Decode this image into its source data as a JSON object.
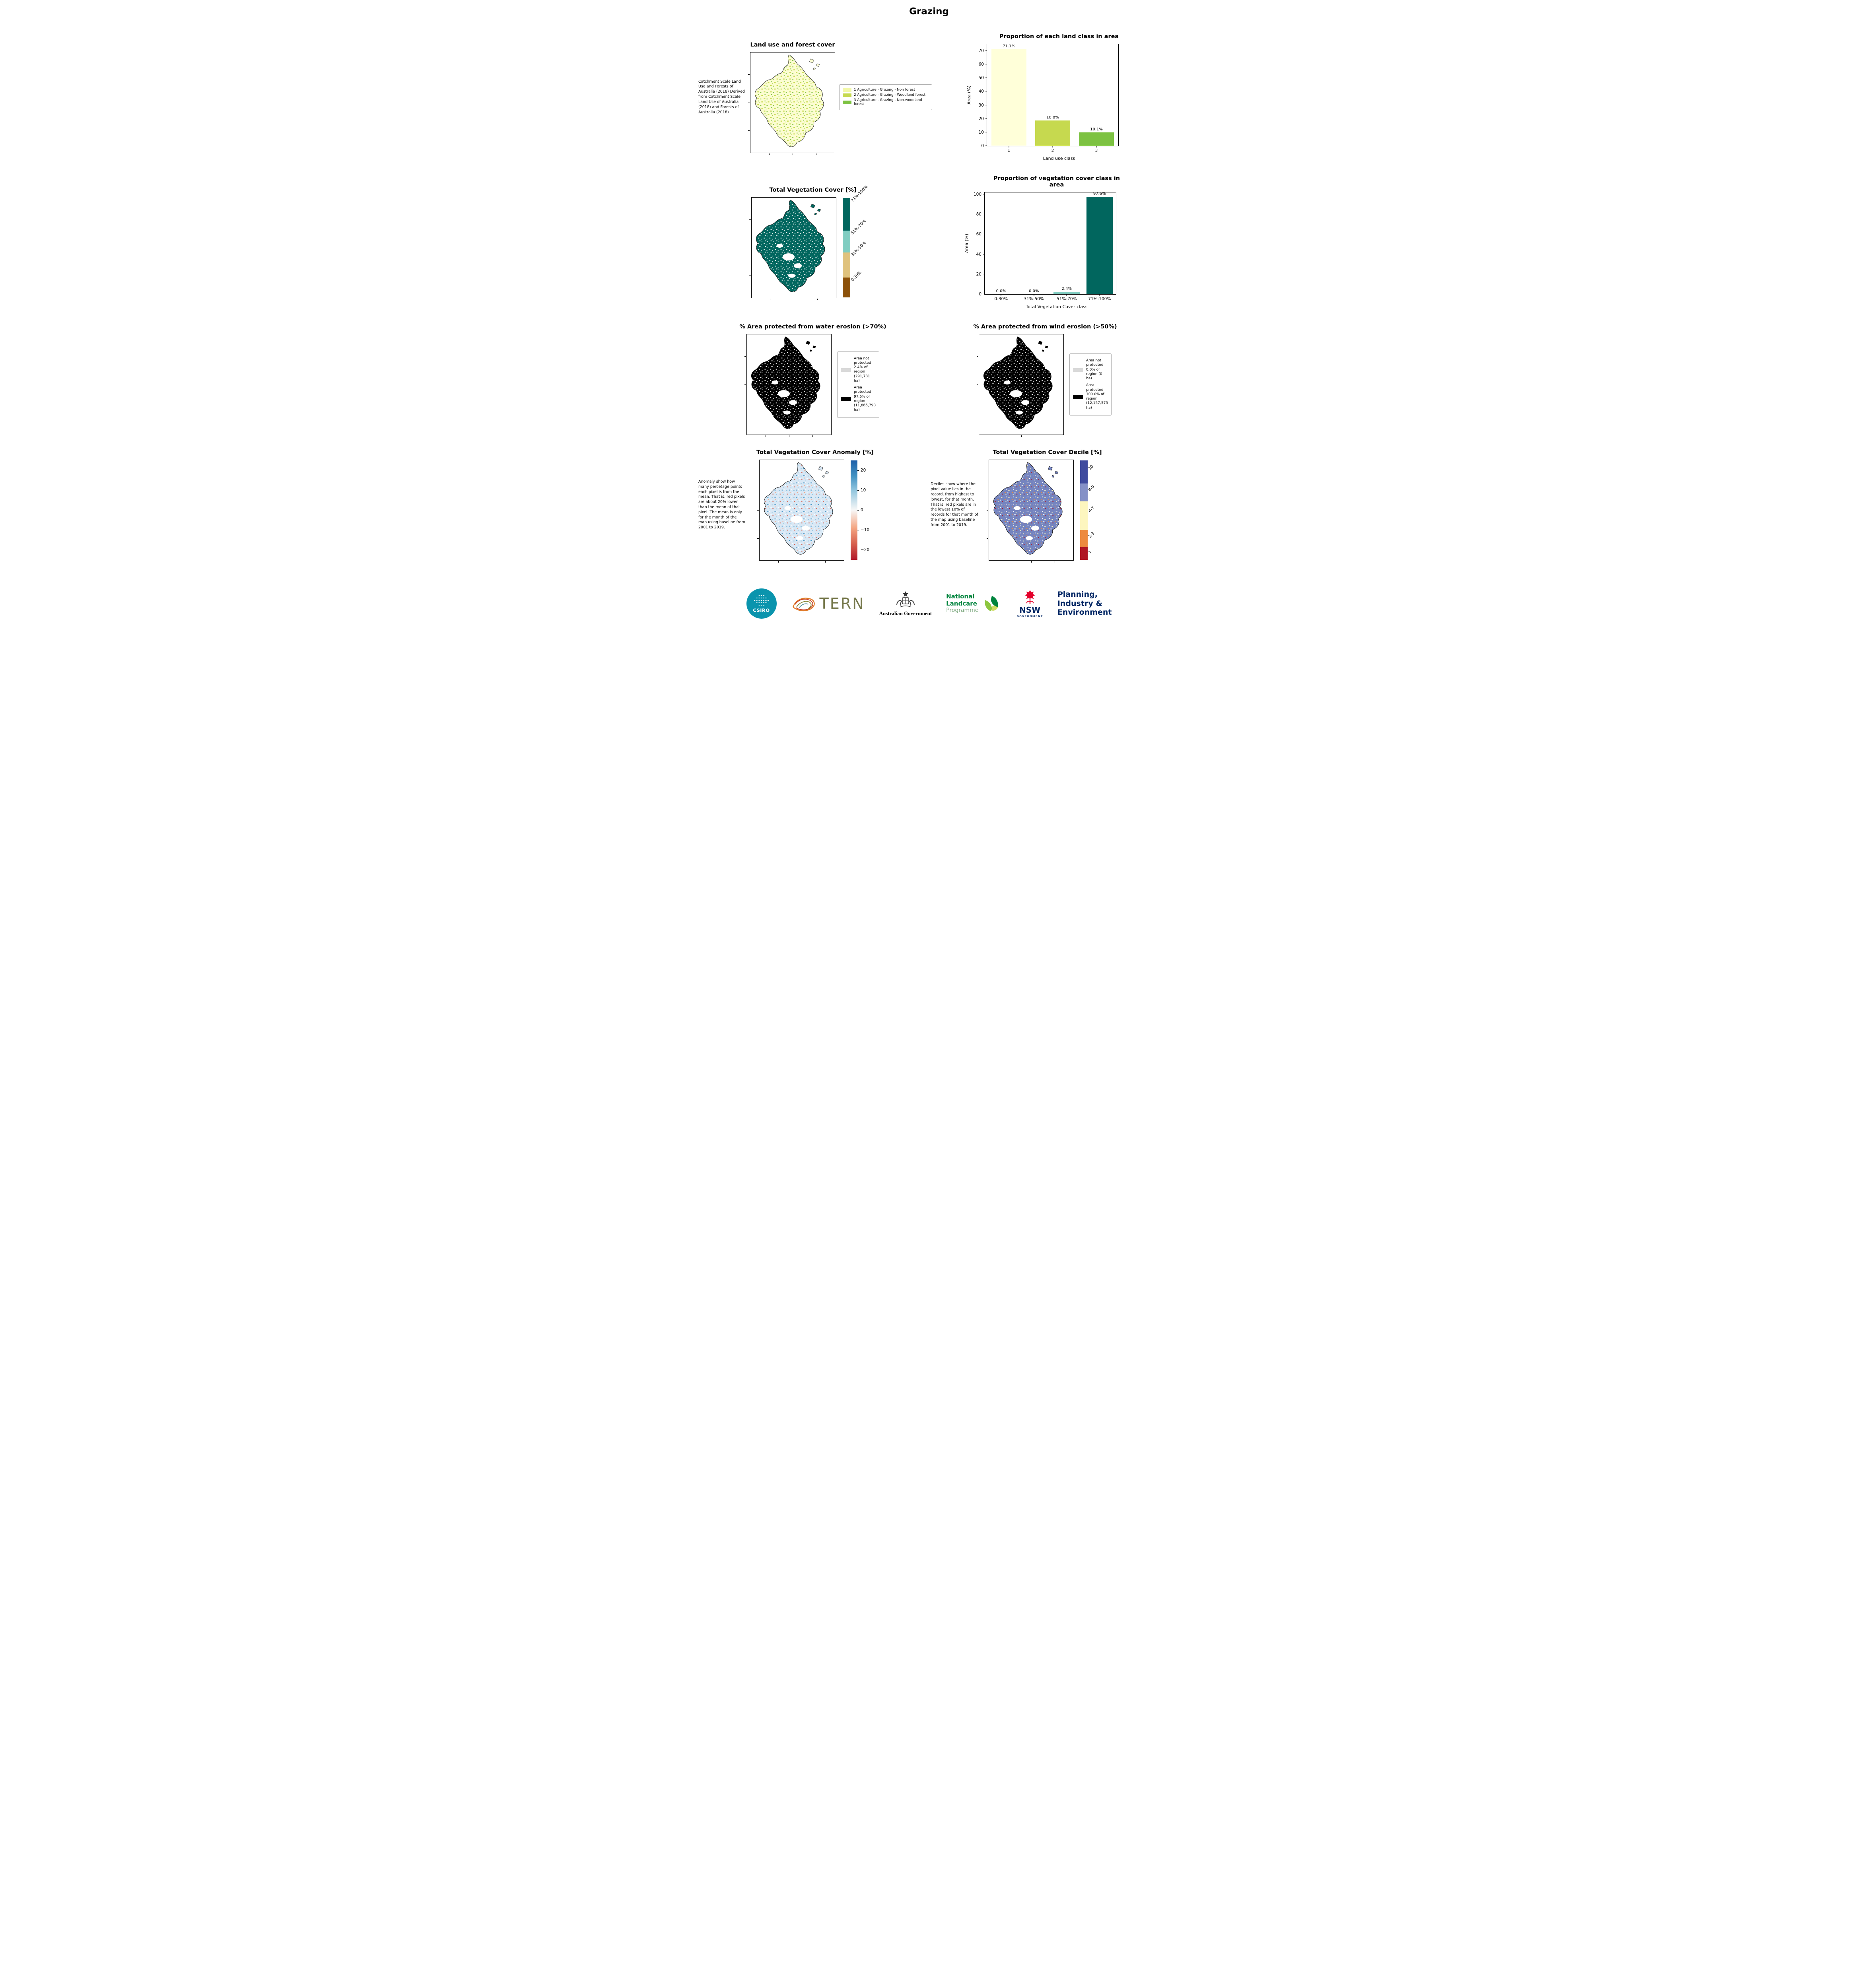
{
  "page_title": "Grazing",
  "panels": {
    "land_use": {
      "title": "Land use and forest cover",
      "side_text": "Catchment Scale Land Use and Forests of Australia (2018) Derived from Catchment Scale Land Use of Australia (2018) and Forests of Australia (2018)",
      "legend": [
        {
          "label": "1 Agriculture - Grazing - Non forest",
          "color": "#f2f8a9"
        },
        {
          "label": "2 Agriculture - Grazing - Woodland forest",
          "color": "#c6d94f"
        },
        {
          "label": "3 Agriculture - Grazing - Non-woodland forest",
          "color": "#7dc242"
        }
      ]
    },
    "veg_cover": {
      "title": "Total Vegetation Cover [%]",
      "colorbar": [
        {
          "label": "71%-100%",
          "color": "#01665e"
        },
        {
          "label": "51%-70%",
          "color": "#80cdc1"
        },
        {
          "label": "31%-50%",
          "color": "#dfc27d"
        },
        {
          "label": "0-30%",
          "color": "#8c510a"
        }
      ]
    },
    "water_erosion": {
      "title": "% Area protected from water erosion (>70%)",
      "legend": [
        {
          "label": "Area not protected 2.4% of region (291,781 ha)",
          "color": "#d9d9d9"
        },
        {
          "label": "Area protected 97.6% of region (11,865,793 ha)",
          "color": "#000000"
        }
      ]
    },
    "wind_erosion": {
      "title": "% Area protected from wind erosion (>50%)",
      "legend": [
        {
          "label": "Area not protected 0.0% of region (0 ha)",
          "color": "#d9d9d9"
        },
        {
          "label": "Area protected 100.0% of region (12,157,575 ha)",
          "color": "#000000"
        }
      ]
    },
    "anomaly": {
      "title": "Total Vegetation Cover Anomaly [%]",
      "side_text": "Anomaly show how many percetage points each pixel is from the mean. That is, red pixels are about 20% lower than the mean of that pixel. The mean is only for the month of the map using baseline from 2001 to 2019.",
      "colorbar_ticks": [
        "20",
        "10",
        "0",
        "−10",
        "−20"
      ]
    },
    "decile": {
      "title": "Total Vegetation Cover Decile [%]",
      "side_text": "Deciles show where the pixel value lies in the record, from highest to lowest, for that month. That is, red pixels are in the lowest 10% of records for that month of the map using baseline from 2001 to 2019.",
      "colorbar": [
        {
          "label": "10",
          "color": "#3f4b9e"
        },
        {
          "label": "8-9",
          "color": "#8591c7"
        },
        {
          "label": "4-7",
          "color": "#fdf6bf"
        },
        {
          "label": "2-3",
          "color": "#ed8a3f"
        },
        {
          "label": "1",
          "color": "#b01624"
        }
      ]
    }
  },
  "chart_data": [
    {
      "type": "bar",
      "title": "Proportion of each land class in area",
      "categories": [
        "1",
        "2",
        "3"
      ],
      "values": [
        71.1,
        18.8,
        10.1
      ],
      "bar_labels": [
        "71.1%",
        "18.8%",
        "10.1%"
      ],
      "bar_colors": [
        "#ffffd9",
        "#c6d94f",
        "#7dc242"
      ],
      "xlabel": "Land use class",
      "ylabel": "Area (%)",
      "ylim": [
        0,
        75
      ],
      "yticks": [
        0,
        10,
        20,
        30,
        40,
        50,
        60,
        70
      ],
      "grid": false,
      "legend_position": "none"
    },
    {
      "type": "bar",
      "title": "Proportion of vegetation cover class in area",
      "categories": [
        "0-30%",
        "31%-50%",
        "51%-70%",
        "71%-100%"
      ],
      "values": [
        0.0,
        0.0,
        2.4,
        97.6
      ],
      "bar_labels": [
        "0.0%",
        "0.0%",
        "2.4%",
        "97.6%"
      ],
      "bar_colors": [
        "#8c510a",
        "#dfc27d",
        "#80cdc1",
        "#01665e"
      ],
      "xlabel": "Total Vegetation Cover class",
      "ylabel": "Area (%)",
      "ylim": [
        0,
        102
      ],
      "yticks": [
        0,
        20,
        40,
        60,
        80,
        100
      ],
      "grid": false,
      "legend_position": "none"
    }
  ],
  "footer": {
    "csiro_label": "CSIRO",
    "tern_label": "TERN",
    "aus_gov_label": "Australian Government",
    "landcare_line1": "National",
    "landcare_line2": "Landcare",
    "landcare_line3": "Programme",
    "nsw_label": "NSW",
    "nsw_sub": "GOVERNMENT",
    "planning_line1": "Planning,",
    "planning_line2": "Industry &",
    "planning_line3": "Environment"
  }
}
